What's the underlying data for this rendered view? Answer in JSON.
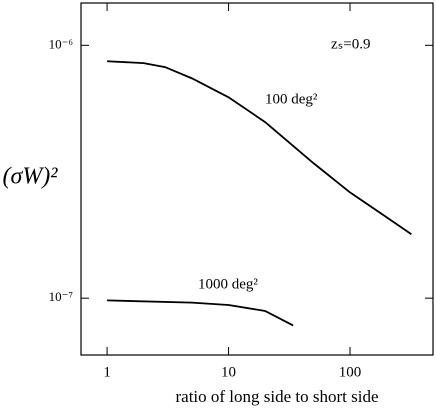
{
  "chart_data": {
    "type": "line",
    "x_label": "ratio of long side to short side",
    "y_label": "(σW)²",
    "annotation": "zₛ=0.9",
    "xscale": "log",
    "yscale": "log",
    "xlim": [
      0.61,
      482
    ],
    "ylim": [
      5.96e-08,
      1.47e-06
    ],
    "xticks": [
      1,
      10,
      100
    ],
    "yticks": [
      {
        "value": 1e-07,
        "label": "10⁻⁷"
      },
      {
        "value": 1e-06,
        "label": "10⁻⁶"
      }
    ],
    "series": [
      {
        "name": "100 deg²",
        "color": "#000000",
        "x": [
          1,
          2,
          3,
          5,
          10,
          20,
          50,
          100,
          200,
          320
        ],
        "values": [
          8.65e-07,
          8.5e-07,
          8.2e-07,
          7.4e-07,
          6.23e-07,
          4.97e-07,
          3.42e-07,
          2.62e-07,
          2.09e-07,
          1.79e-07
        ]
      },
      {
        "name": "1000 deg²",
        "color": "#000000",
        "x": [
          1,
          5,
          10,
          20,
          34
        ],
        "values": [
          9.8e-08,
          9.6e-08,
          9.4e-08,
          8.9e-08,
          7.8e-08
        ]
      }
    ]
  }
}
